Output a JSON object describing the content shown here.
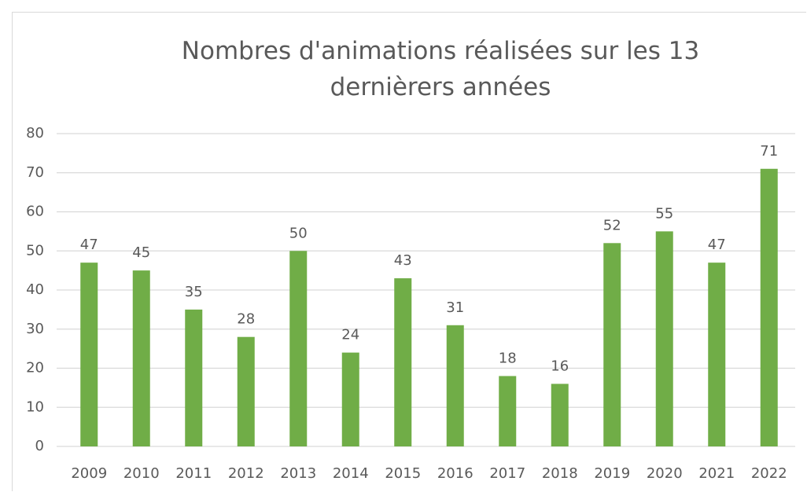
{
  "chart_data": {
    "type": "bar",
    "title": "Nombres d'animations réalisées sur les 13 dernièrers années",
    "categories": [
      "2009",
      "2010",
      "2011",
      "2012",
      "2013",
      "2014",
      "2015",
      "2016",
      "2017",
      "2018",
      "2019",
      "2020",
      "2021",
      "2022"
    ],
    "values": [
      47,
      45,
      35,
      28,
      50,
      24,
      43,
      31,
      18,
      16,
      52,
      55,
      47,
      71
    ],
    "color": "#70ad47",
    "ylim": [
      0,
      80
    ],
    "yticks": [
      0,
      10,
      20,
      30,
      40,
      50,
      60,
      70,
      80
    ],
    "grid": true
  }
}
